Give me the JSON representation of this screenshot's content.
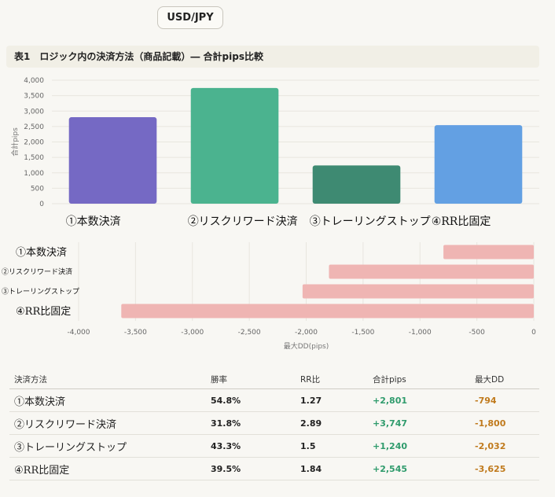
{
  "pair_button": "USD/JPY",
  "table_title": "表1　ロジック内の決済方法（商品記載）― 合計pips比較",
  "colors": {
    "bar_1": "#7569c4",
    "bar_2": "#4bb38f",
    "bar_3": "#3e8a72",
    "bar_4": "#63a0e3",
    "dd_bar": "#efb5b3",
    "positive": "#2f9b6c",
    "negative": "#c07a1c"
  },
  "chart_data": [
    {
      "type": "bar",
      "categories": [
        "①本数決済",
        "②リスクリワード決済",
        "③トレーリングストップ",
        "④RR比固定"
      ],
      "values": [
        2801,
        3747,
        1240,
        2545
      ],
      "ylabel": "合計pips",
      "ylim": [
        0,
        4000
      ],
      "yticks": [
        "4,000",
        "3,500",
        "3,000",
        "2,500",
        "2,000",
        "1,500",
        "1,000",
        "500",
        "0"
      ],
      "grid": true
    },
    {
      "type": "bar",
      "orientation": "horizontal",
      "categories": [
        "①本数決済",
        "②リスクリワード決済",
        "③トレーリングストップ",
        "④RR比固定"
      ],
      "values": [
        -794,
        -1800,
        -2032,
        -3625
      ],
      "xlabel": "最大DD(pips)",
      "xlim": [
        -4000,
        0
      ],
      "xticks": [
        "-4,000",
        "-3,500",
        "-3,000",
        "-2,500",
        "-2,000",
        "-1,500",
        "-1,000",
        "-500",
        "0"
      ],
      "grid": true
    }
  ],
  "summary_table": {
    "headers": [
      "決済方法",
      "勝率",
      "RR比",
      "合計pips",
      "最大DD"
    ],
    "rows": [
      [
        "①本数決済",
        "54.8%",
        "1.27",
        "+2,801",
        "-794"
      ],
      [
        "②リスクリワード決済",
        "31.8%",
        "2.89",
        "+3,747",
        "-1,800"
      ],
      [
        "③トレーリングストップ",
        "43.3%",
        "1.5",
        "+1,240",
        "-2,032"
      ],
      [
        "④RR比固定",
        "39.5%",
        "1.84",
        "+2,545",
        "-3,625"
      ]
    ]
  }
}
